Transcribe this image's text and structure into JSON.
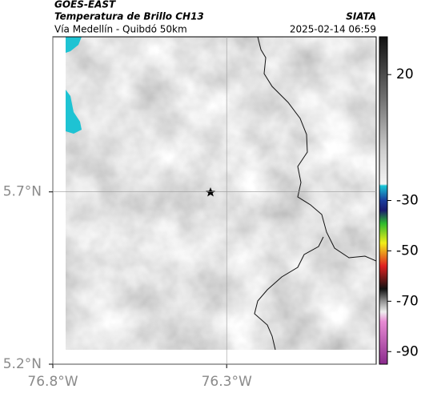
{
  "chart_data": {
    "type": "map",
    "satellite": "GOES-EAST",
    "title": "Temperatura de Brillo CH13",
    "subtitle": "Vía Medellín - Quibdó 50km",
    "source": "SIATA",
    "timestamp": "2025-02-14 06:59",
    "xlim": [
      -76.8,
      -75.87
    ],
    "ylim": [
      5.2,
      6.15
    ],
    "xticks": [
      {
        "value": -76.8,
        "label": "76.8°W"
      },
      {
        "value": -76.3,
        "label": "76.3°W"
      }
    ],
    "yticks": [
      {
        "value": 5.2,
        "label": "5.2°N"
      },
      {
        "value": 5.7,
        "label": "5.7°N"
      }
    ],
    "grid": true,
    "colorbar": {
      "clim": [
        -95,
        35
      ],
      "ticks": [
        20,
        -30,
        -50,
        -70,
        -90
      ]
    }
  }
}
